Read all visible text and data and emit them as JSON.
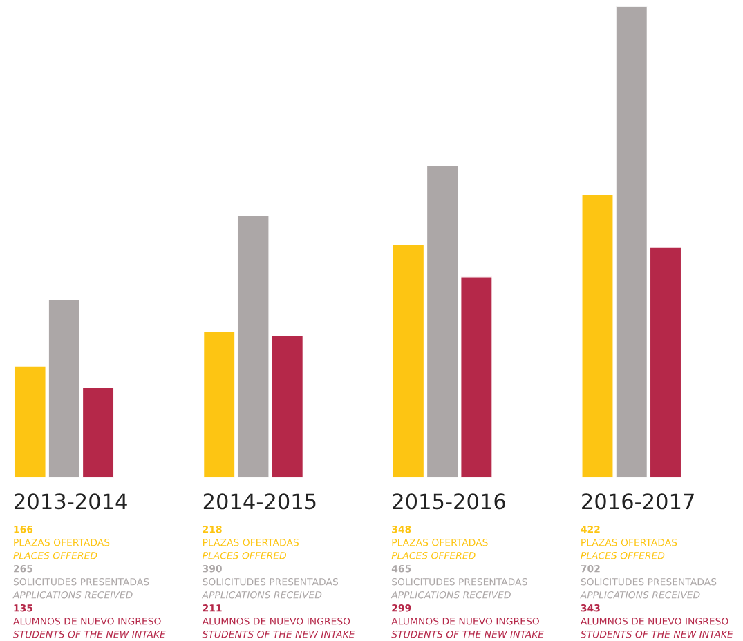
{
  "chart_data": {
    "type": "bar",
    "categories": [
      "2013-2014",
      "2014-2015",
      "2015-2016",
      "2016-2017"
    ],
    "series": [
      {
        "name": "PLAZAS OFERTADAS\nPLACES OFFERED",
        "color": "#fdc513",
        "values": [
          166,
          218,
          348,
          422
        ]
      },
      {
        "name": "SOLICITUDES PRESENTADAS\nAPPLICATIONS RECEIVED",
        "color": "#aca7a7",
        "values": [
          265,
          390,
          465,
          702
        ]
      },
      {
        "name": "ALUMNOS DE NUEVO INGRESO\nSTUDENTS OF THE NEW INTAKE",
        "color": "#b52849",
        "values": [
          135,
          211,
          299,
          343
        ]
      }
    ],
    "data_labels": true,
    "legend": false
  }
}
